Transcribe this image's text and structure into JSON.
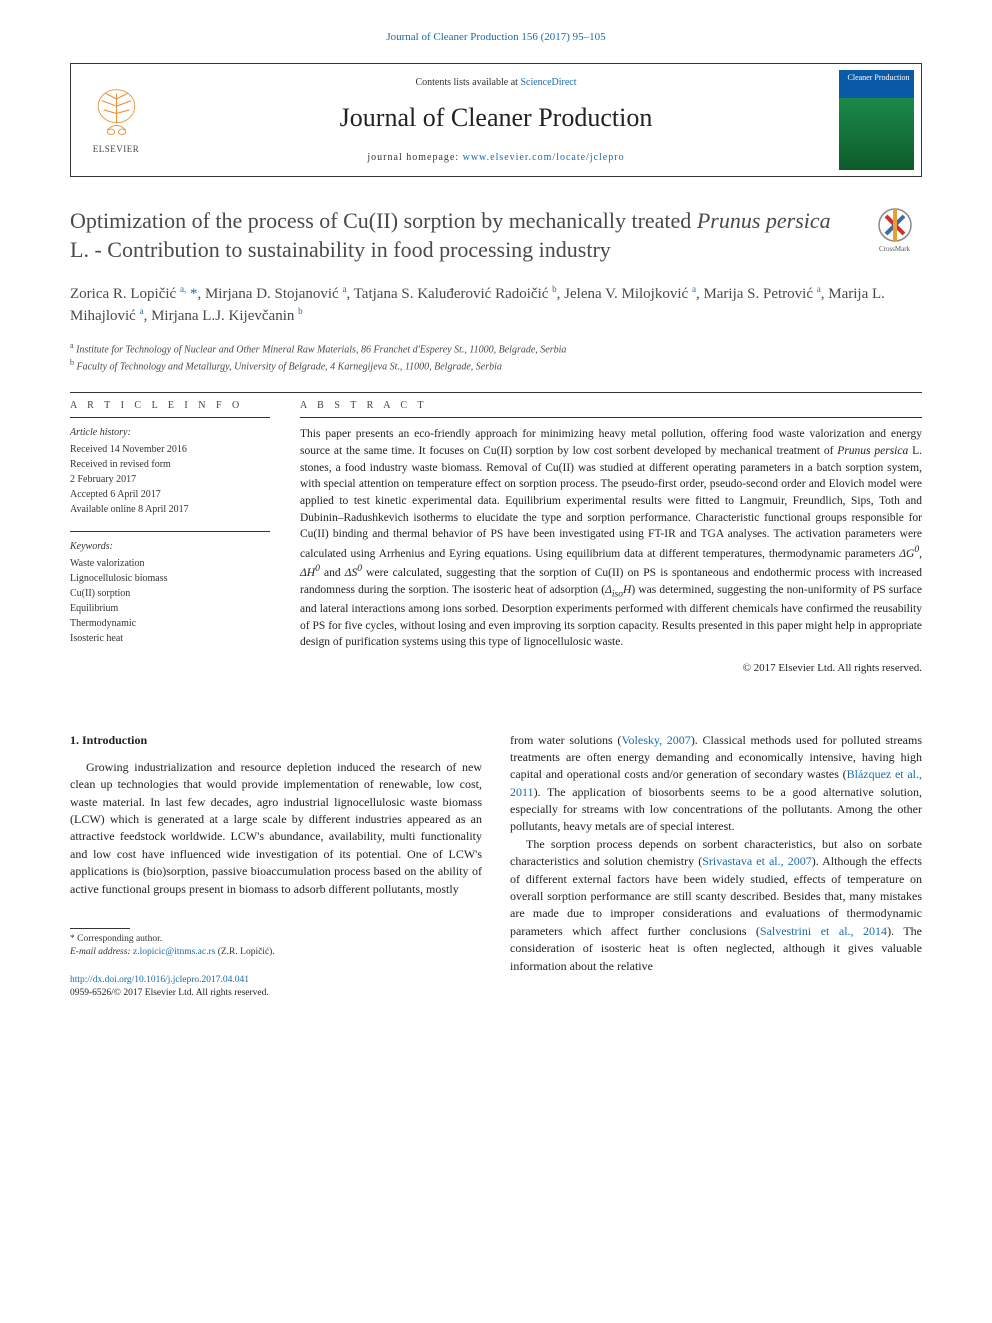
{
  "citation": "Journal of Cleaner Production 156 (2017) 95–105",
  "header": {
    "contents_prefix": "Contents lists available at ",
    "contents_link": "ScienceDirect",
    "journal_name": "Journal of Cleaner Production",
    "homepage_prefix": "journal homepage: ",
    "homepage_url": "www.elsevier.com/locate/jclepro",
    "elsevier_label": "ELSEVIER"
  },
  "title_html": "Optimization of the process of Cu(II) sorption by mechanically treated <em>Prunus persica</em> L. - Contribution to sustainability in food processing industry",
  "crossmark_label": "CrossMark",
  "authors_html": "Zorica R. Lopičić <sup>a,</sup> <span class='ast'>*</span>, Mirjana D. Stojanović <sup>a</sup>, Tatjana S. Kaluđerović Radoičić <sup>b</sup>, Jelena V. Milojković <sup>a</sup>, Marija S. Petrović <sup>a</sup>, Marija L. Mihajlović <sup>a</sup>, Mirjana L.J. Kijevčanin <sup>b</sup>",
  "affiliations": {
    "a": "Institute for Technology of Nuclear and Other Mineral Raw Materials, 86 Franchet d'Esperey St., 11000, Belgrade, Serbia",
    "b": "Faculty of Technology and Metallurgy, University of Belgrade, 4 Karnegijeva St., 11000, Belgrade, Serbia"
  },
  "article_info": {
    "heading": "A R T I C L E   I N F O",
    "history_label": "Article history:",
    "history": [
      "Received 14 November 2016",
      "Received in revised form",
      "2 February 2017",
      "Accepted 6 April 2017",
      "Available online 8 April 2017"
    ],
    "keywords_label": "Keywords:",
    "keywords": [
      "Waste valorization",
      "Lignocellulosic biomass",
      "Cu(II) sorption",
      "Equilibrium",
      "Thermodynamic",
      "Isosteric heat"
    ]
  },
  "abstract": {
    "heading": "A B S T R A C T",
    "text_html": "This paper presents an eco-friendly approach for minimizing heavy metal pollution, offering food waste valorization and energy source at the same time. It focuses on Cu(II) sorption by low cost sorbent developed by mechanical treatment of <em>Prunus persica</em> L. stones, a food industry waste biomass. Removal of Cu(II) was studied at different operating parameters in a batch sorption system, with special attention on temperature effect on sorption process. The pseudo-first order, pseudo-second order and Elovich model were applied to test kinetic experimental data. Equilibrium experimental results were fitted to Langmuir, Freundlich, Sips, Toth and Dubinin–Radushkevich isotherms to elucidate the type and sorption performance. Characteristic functional groups responsible for Cu(II) binding and thermal behavior of PS have been investigated using FT-IR and TGA analyses. The activation parameters were calculated using Arrhenius and Eyring equations. Using equilibrium data at different temperatures, thermodynamic parameters <em>ΔG<sup>0</sup></em>, <em>ΔH<sup>0</sup></em> and <em>ΔS<sup>0</sup></em> were calculated, suggesting that the sorption of Cu(II) on PS is spontaneous and endothermic process with increased randomness during the sorption. The isosteric heat of adsorption (<em>Δ<sub>iso</sub>H</em>) was determined, suggesting the non-uniformity of PS surface and lateral interactions among ions sorbed. Desorption experiments performed with different chemicals have confirmed the reusability of PS for five cycles, without losing and even improving its sorption capacity. Results presented in this paper might help in appropriate design of purification systems using this type of lignocellulosic waste.",
    "copyright": "© 2017 Elsevier Ltd. All rights reserved."
  },
  "intro": {
    "heading": "1. Introduction",
    "col1_html": "Growing industrialization and resource depletion induced the research of new clean up technologies that would provide implementation of renewable, low cost, waste material. In last few decades, agro industrial lignocellulosic waste biomass (LCW) which is generated at a large scale by different industries appeared as an attractive feedstock worldwide. LCW's abundance, availability, multi functionality and low cost have influenced wide investigation of its potential. One of LCW's applications is (bio)sorption, passive bioaccumulation process based on the ability of active functional groups present in biomass to adsorb different pollutants, mostly",
    "col2_p1_html": "from water solutions (<a href='#' data-name='ref-link' data-interactable='true'>Volesky, 2007</a>). Classical methods used for polluted streams treatments are often energy demanding and economically intensive, having high capital and operational costs and/or generation of secondary wastes (<a href='#' data-name='ref-link' data-interactable='true'>Blázquez et al., 2011</a>). The application of biosorbents seems to be a good alternative solution, especially for streams with low concentrations of the pollutants. Among the other pollutants, heavy metals are of special interest.",
    "col2_p2_html": "The sorption process depends on sorbent characteristics, but also on sorbate characteristics and solution chemistry (<a href='#' data-name='ref-link' data-interactable='true'>Srivastava et al., 2007</a>). Although the effects of different external factors have been widely studied, effects of temperature on overall sorption performance are still scanty described. Besides that, many mistakes are made due to improper considerations and evaluations of thermodynamic parameters which affect further conclusions (<a href='#' data-name='ref-link' data-interactable='true'>Salvestrini et al., 2014</a>). The consideration of isosteric heat is often neglected, although it gives valuable information about the relative"
  },
  "footnote": {
    "corr": "* Corresponding author.",
    "email_label": "E-mail address:",
    "email": "z.lopicic@itnms.ac.rs",
    "email_name": "(Z.R. Lopičić)."
  },
  "footer": {
    "doi": "http://dx.doi.org/10.1016/j.jclepro.2017.04.041",
    "issn_line": "0959-6526/© 2017 Elsevier Ltd. All rights reserved."
  },
  "colors": {
    "link": "#1a6aa8",
    "text": "#222222",
    "heading_gray": "#4a4a4a",
    "cover_top": "#0a5aa8",
    "cover_bottom": "#0d5a2a"
  }
}
